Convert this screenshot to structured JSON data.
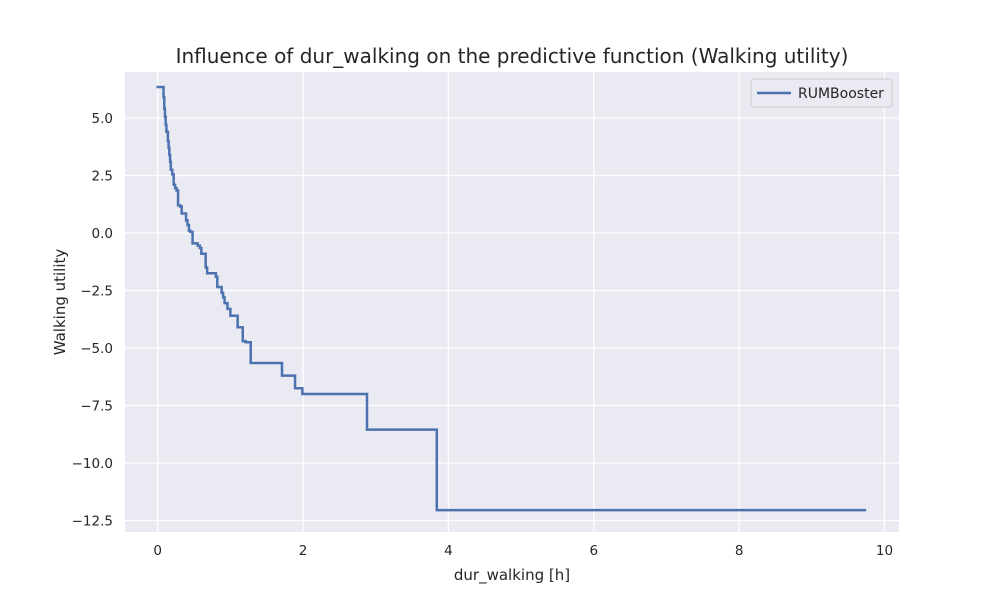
{
  "chart_data": {
    "type": "line",
    "title": "Influence of dur_walking on the predictive function (Walking utility)",
    "xlabel": "dur_walking [h]",
    "ylabel": "Walking utility",
    "xlim": [
      -0.45,
      10.2
    ],
    "ylim": [
      -13.0,
      7.0
    ],
    "xticks": [
      0,
      2,
      4,
      6,
      8,
      10
    ],
    "xtick_labels": [
      "0",
      "2",
      "4",
      "6",
      "8",
      "10"
    ],
    "yticks": [
      5.0,
      2.5,
      0.0,
      -2.5,
      -5.0,
      -7.5,
      -10.0,
      -12.5
    ],
    "ytick_labels": [
      "5.0",
      "2.5",
      "0.0",
      "−2.5",
      "−5.0",
      "−7.5",
      "−10.0",
      "−12.5"
    ],
    "grid": true,
    "legend_position": "top-right",
    "series": [
      {
        "name": "RUMBooster",
        "color": "#4c72b0",
        "step": "post",
        "x": [
          0.0,
          0.08,
          0.09,
          0.1,
          0.11,
          0.12,
          0.14,
          0.15,
          0.16,
          0.17,
          0.18,
          0.2,
          0.22,
          0.24,
          0.26,
          0.28,
          0.31,
          0.33,
          0.39,
          0.41,
          0.43,
          0.45,
          0.48,
          0.5,
          0.55,
          0.58,
          0.6,
          0.66,
          0.68,
          0.72,
          0.8,
          0.82,
          0.88,
          0.9,
          0.92,
          0.96,
          1.0,
          1.1,
          1.17,
          1.21,
          1.28,
          1.71,
          1.89,
          1.99,
          2.3,
          2.88,
          3.84,
          9.73
        ],
        "y": [
          6.35,
          5.9,
          5.4,
          5.05,
          4.7,
          4.4,
          4.0,
          3.7,
          3.4,
          3.1,
          2.75,
          2.55,
          2.1,
          1.95,
          1.85,
          1.2,
          1.15,
          0.85,
          0.55,
          0.35,
          0.1,
          0.05,
          -0.45,
          -0.45,
          -0.55,
          -0.65,
          -0.9,
          -1.5,
          -1.75,
          -1.75,
          -1.9,
          -2.35,
          -2.6,
          -2.8,
          -3.05,
          -3.3,
          -3.6,
          -4.1,
          -4.7,
          -4.75,
          -5.65,
          -6.2,
          -6.75,
          -7.0,
          -7.0,
          -8.55,
          -12.05,
          -12.05
        ]
      }
    ]
  }
}
